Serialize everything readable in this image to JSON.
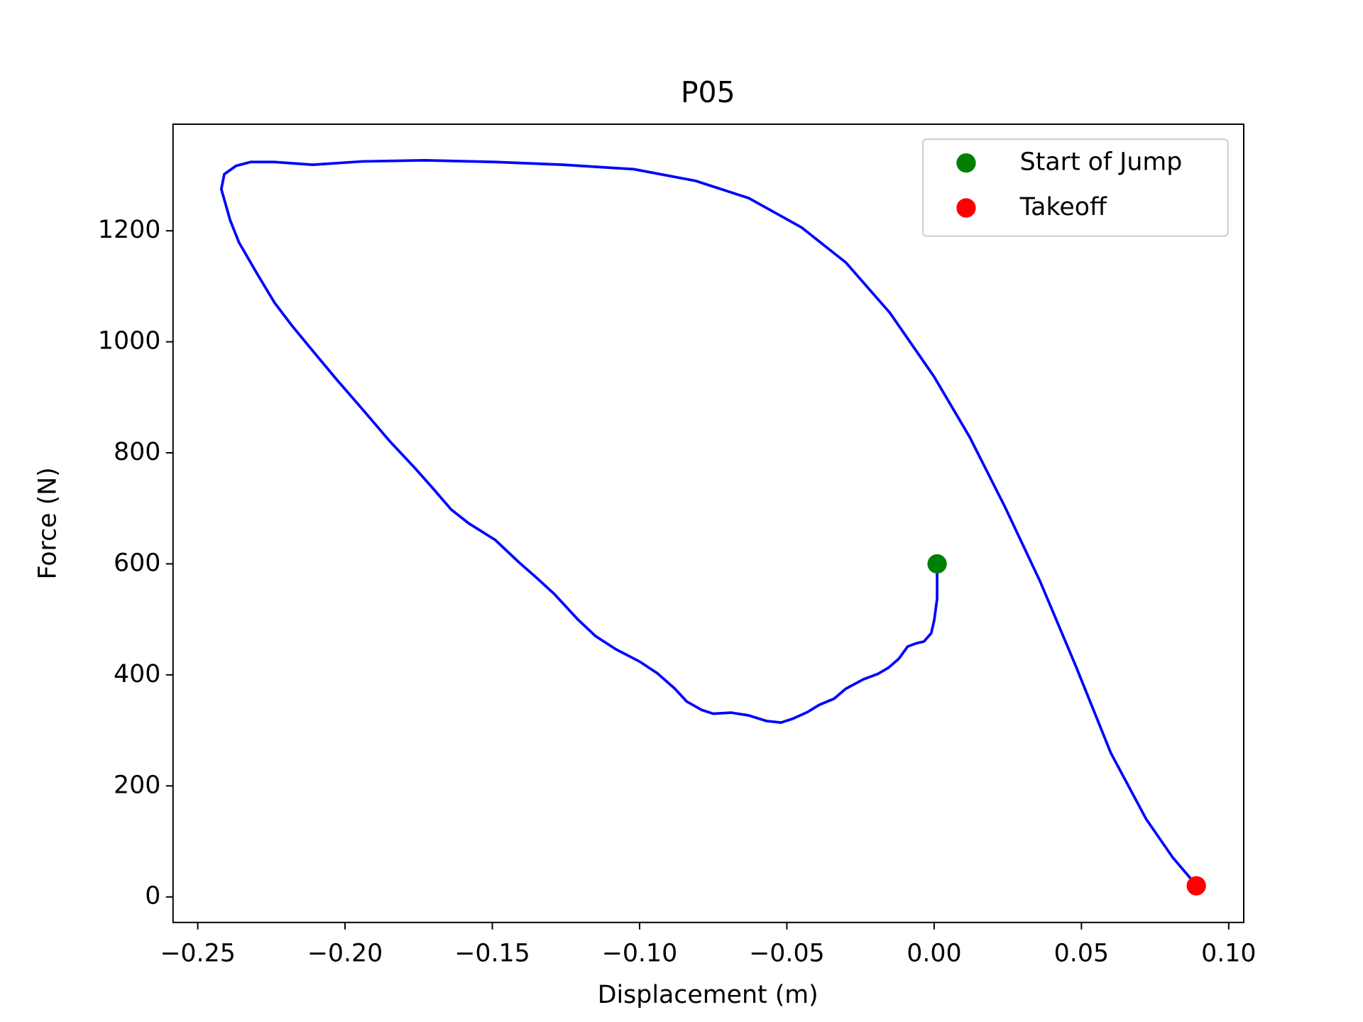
{
  "chart_data": {
    "type": "line",
    "title": "P05",
    "xlabel": "Displacement (m)",
    "ylabel": "Force (N)",
    "xlim": [
      -0.2584,
      0.1051
    ],
    "ylim": [
      -46,
      1392
    ],
    "xticks": [
      {
        "value": -0.25,
        "label": "−0.25"
      },
      {
        "value": -0.2,
        "label": "−0.20"
      },
      {
        "value": -0.15,
        "label": "−0.15"
      },
      {
        "value": -0.1,
        "label": "−0.10"
      },
      {
        "value": -0.05,
        "label": "−0.05"
      },
      {
        "value": 0,
        "label": "0.00"
      },
      {
        "value": 0.05,
        "label": "0.05"
      },
      {
        "value": 0.1,
        "label": "0.10"
      }
    ],
    "yticks": [
      0,
      200,
      400,
      600,
      800,
      1000,
      1200
    ],
    "legend": "upper right",
    "series": [
      {
        "type": "line",
        "color": "#0000ff",
        "x": [
          0.001,
          0.001,
          0.0,
          -0.001,
          -0.0035,
          -0.006,
          -0.009,
          -0.012,
          -0.0155,
          -0.019,
          -0.024,
          -0.03,
          -0.034,
          -0.039,
          -0.043,
          -0.048,
          -0.052,
          -0.057,
          -0.063,
          -0.069,
          -0.075,
          -0.079,
          -0.084,
          -0.088,
          -0.094,
          -0.1,
          -0.108,
          -0.115,
          -0.121,
          -0.129,
          -0.135,
          -0.141,
          -0.149,
          -0.158,
          -0.164,
          -0.17,
          -0.176,
          -0.185,
          -0.194,
          -0.203,
          -0.211,
          -0.218,
          -0.224,
          -0.23,
          -0.236,
          -0.239,
          -0.242,
          -0.241,
          -0.237,
          -0.232,
          -0.224,
          -0.211,
          -0.194,
          -0.173,
          -0.149,
          -0.126,
          -0.102,
          -0.081,
          -0.063,
          -0.045,
          -0.03,
          -0.015,
          0.0,
          0.012,
          0.024,
          0.036,
          0.048,
          0.06,
          0.072,
          0.081,
          0.089
        ],
        "y": [
          600,
          537,
          498,
          475,
          460,
          457,
          451,
          429,
          413,
          402,
          392,
          375,
          357,
          346,
          333,
          321,
          314,
          317,
          327,
          332,
          330,
          337,
          352,
          375,
          403,
          424,
          446,
          470,
          500,
          546,
          575,
          603,
          643,
          673,
          698,
          735,
          771,
          822,
          878,
          933,
          984,
          1029,
          1071,
          1124,
          1179,
          1219,
          1275,
          1302,
          1317,
          1324,
          1324,
          1319,
          1325,
          1327,
          1324,
          1319,
          1311,
          1290,
          1259,
          1206,
          1143,
          1052,
          937,
          829,
          703,
          568,
          417,
          259,
          140,
          71,
          21
        ]
      },
      {
        "type": "scatter",
        "name": "Start of Jump",
        "color": "#008000",
        "x": [
          0.001
        ],
        "y": [
          600
        ]
      },
      {
        "type": "scatter",
        "name": "Takeoff",
        "color": "#ff0000",
        "x": [
          0.089
        ],
        "y": [
          20
        ]
      }
    ]
  }
}
